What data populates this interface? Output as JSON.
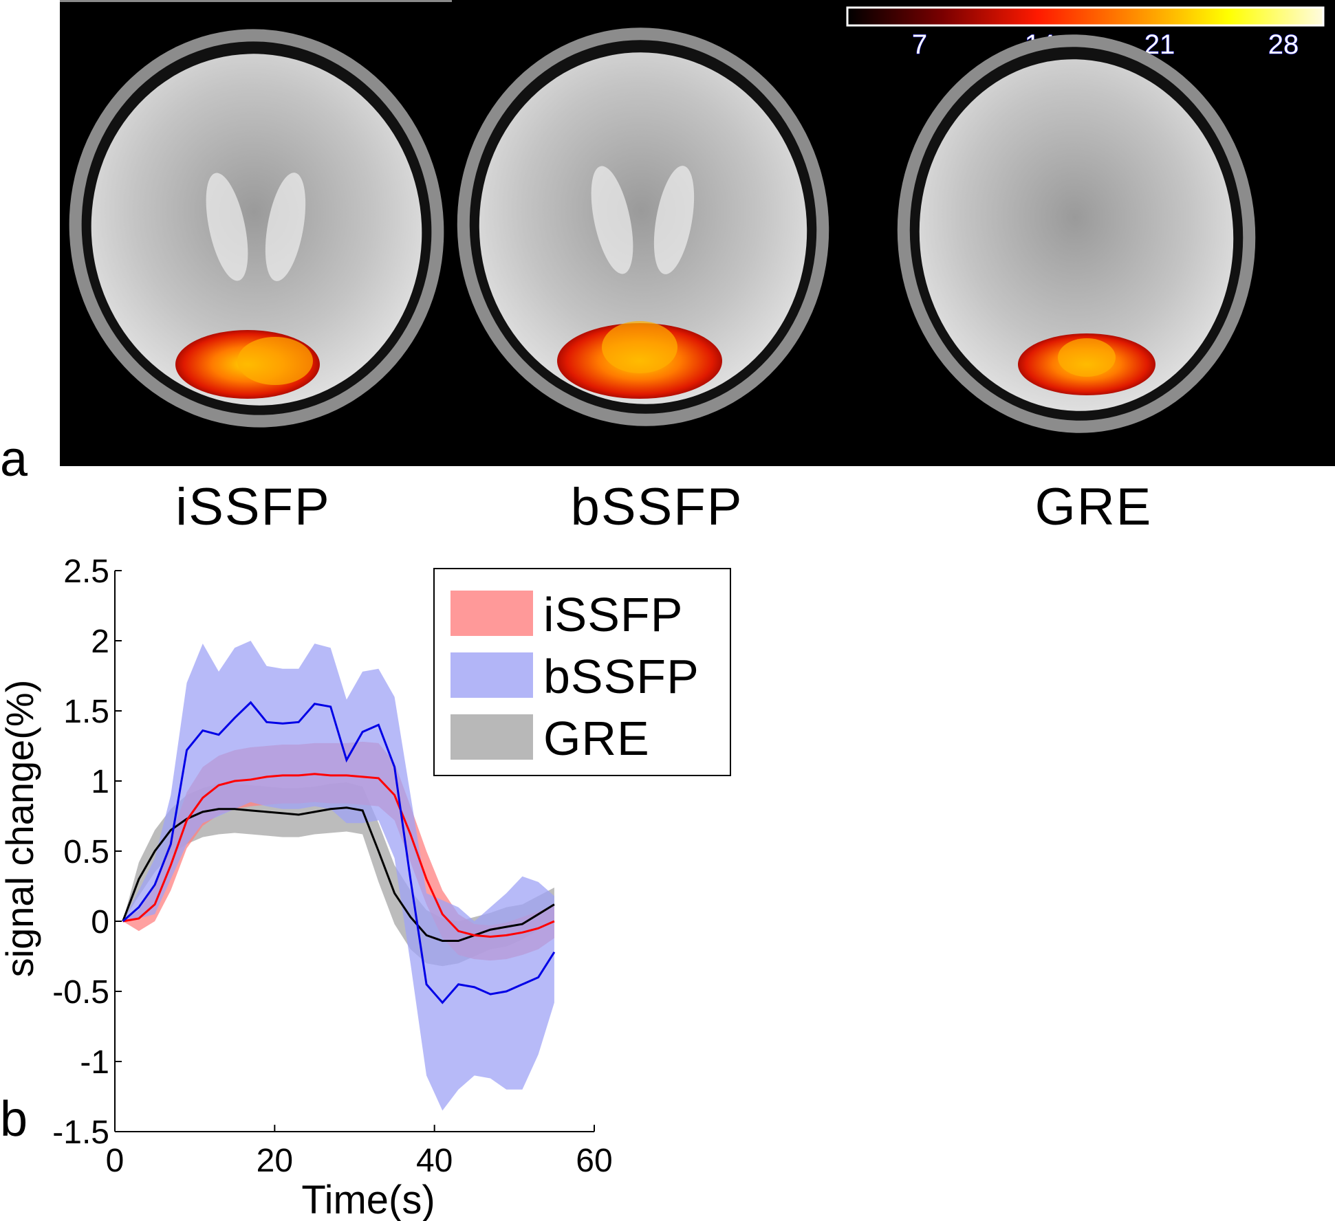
{
  "panel_a": {
    "letter": "a",
    "colorbar_ticks": [
      "7",
      "14",
      "21",
      "28"
    ],
    "colors": {
      "background": "#000000",
      "colorbar_gradient": [
        "#000000",
        "#7a0000",
        "#ff1a00",
        "#ff8a00",
        "#ffff00",
        "#fffbe0"
      ],
      "colorbar_tick_text": "#ffffff",
      "colorbar_tick_outline": "#1010c8"
    },
    "scans": [
      {
        "label": "iSSFP"
      },
      {
        "label": "bSSFP"
      },
      {
        "label": "GRE"
      }
    ]
  },
  "panel_b": {
    "letter": "b"
  },
  "chart_data": {
    "type": "line",
    "xlabel": "Time(s)",
    "ylabel": "signal change(%)",
    "xlim": [
      0,
      60
    ],
    "ylim": [
      -1.5,
      2.5
    ],
    "xticks": [
      0,
      20,
      40,
      60
    ],
    "xtick_labels": [
      "0",
      "20",
      "40",
      "60"
    ],
    "yticks": [
      2.5,
      2,
      1.5,
      1,
      0.5,
      0,
      -0.5,
      -1,
      -1.5
    ],
    "ytick_labels": [
      "2.5",
      "2",
      "1.5",
      "1",
      "0.5",
      "0",
      "-0.5",
      "-1",
      "-1.5"
    ],
    "grid": false,
    "legend_position": "top-right",
    "legend_border": true,
    "x": [
      1,
      3,
      5,
      7,
      9,
      11,
      13,
      15,
      17,
      19,
      21,
      23,
      25,
      27,
      29,
      31,
      33,
      35,
      37,
      39,
      41,
      43,
      45,
      47,
      49,
      51,
      53,
      55
    ],
    "series": [
      {
        "name": "iSSFP",
        "line_color": "#ff0000",
        "band_color": "#ff8080",
        "mean": [
          0.0,
          0.02,
          0.12,
          0.4,
          0.72,
          0.88,
          0.97,
          1.0,
          1.01,
          1.03,
          1.04,
          1.04,
          1.05,
          1.04,
          1.04,
          1.03,
          1.02,
          0.9,
          0.62,
          0.3,
          0.05,
          -0.07,
          -0.1,
          -0.11,
          -0.1,
          -0.08,
          -0.05,
          0.0
        ],
        "lower": [
          0.0,
          -0.07,
          0.0,
          0.22,
          0.52,
          0.68,
          0.76,
          0.8,
          0.82,
          0.83,
          0.84,
          0.84,
          0.85,
          0.84,
          0.84,
          0.83,
          0.82,
          0.72,
          0.42,
          0.12,
          -0.12,
          -0.24,
          -0.27,
          -0.28,
          -0.27,
          -0.24,
          -0.2,
          -0.12
        ],
        "upper": [
          0.0,
          0.08,
          0.25,
          0.6,
          0.92,
          1.1,
          1.18,
          1.22,
          1.24,
          1.25,
          1.26,
          1.26,
          1.27,
          1.27,
          1.27,
          1.28,
          1.27,
          1.13,
          0.82,
          0.5,
          0.22,
          0.05,
          -0.02,
          -0.03,
          -0.01,
          0.03,
          0.07,
          0.12
        ]
      },
      {
        "name": "bSSFP",
        "line_color": "#0000e6",
        "band_color": "#9fa3f5",
        "mean": [
          0.0,
          0.1,
          0.26,
          0.55,
          1.22,
          1.36,
          1.33,
          1.45,
          1.56,
          1.42,
          1.41,
          1.42,
          1.55,
          1.53,
          1.15,
          1.35,
          1.4,
          1.1,
          0.3,
          -0.45,
          -0.58,
          -0.45,
          -0.47,
          -0.52,
          -0.5,
          -0.45,
          -0.4,
          -0.22
        ],
        "lower": [
          0.0,
          0.02,
          0.05,
          0.3,
          0.55,
          0.7,
          0.75,
          0.8,
          0.85,
          0.82,
          0.8,
          0.8,
          0.82,
          0.8,
          0.7,
          0.7,
          0.72,
          0.45,
          -0.3,
          -1.1,
          -1.35,
          -1.2,
          -1.1,
          -1.12,
          -1.2,
          -1.2,
          -0.95,
          -0.58
        ],
        "upper": [
          0.0,
          0.22,
          0.45,
          0.9,
          1.7,
          1.98,
          1.78,
          1.95,
          2.0,
          1.82,
          1.8,
          1.8,
          1.98,
          1.95,
          1.58,
          1.78,
          1.8,
          1.6,
          0.9,
          0.2,
          0.15,
          0.1,
          0.0,
          0.1,
          0.2,
          0.32,
          0.28,
          0.18
        ]
      },
      {
        "name": "GRE",
        "line_color": "#000000",
        "band_color": "#a6a6a6",
        "mean": [
          0.0,
          0.3,
          0.5,
          0.65,
          0.73,
          0.78,
          0.8,
          0.8,
          0.79,
          0.78,
          0.77,
          0.76,
          0.78,
          0.8,
          0.81,
          0.79,
          0.5,
          0.2,
          0.03,
          -0.1,
          -0.14,
          -0.14,
          -0.1,
          -0.06,
          -0.04,
          -0.02,
          0.05,
          0.12
        ],
        "lower": [
          0.0,
          0.18,
          0.35,
          0.48,
          0.55,
          0.6,
          0.62,
          0.63,
          0.62,
          0.61,
          0.6,
          0.6,
          0.62,
          0.63,
          0.64,
          0.62,
          0.28,
          -0.02,
          -0.2,
          -0.3,
          -0.32,
          -0.3,
          -0.25,
          -0.2,
          -0.18,
          -0.13,
          -0.06,
          0.0
        ],
        "upper": [
          0.0,
          0.42,
          0.65,
          0.8,
          0.9,
          0.95,
          0.98,
          0.98,
          0.97,
          0.96,
          0.95,
          0.95,
          0.96,
          0.98,
          0.99,
          0.96,
          0.7,
          0.4,
          0.22,
          0.08,
          0.02,
          0.0,
          0.03,
          0.06,
          0.1,
          0.12,
          0.18,
          0.24
        ]
      }
    ]
  }
}
